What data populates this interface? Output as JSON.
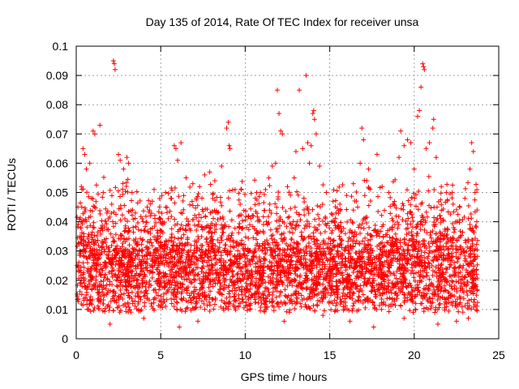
{
  "chart_data": {
    "type": "scatter",
    "title": "Day 135 of 2014, Rate Of TEC Index for receiver unsa",
    "xlabel": "GPS time / hours",
    "ylabel": "ROTI / TECUs",
    "xlim": [
      0,
      25
    ],
    "ylim": [
      0,
      0.1
    ],
    "xticks": [
      "0",
      "5",
      "10",
      "15",
      "20",
      "25"
    ],
    "yticks": [
      "0",
      "0.01",
      "0.02",
      "0.03",
      "0.04",
      "0.05",
      "0.06",
      "0.07",
      "0.08",
      "0.09",
      "0.1"
    ],
    "grid": true,
    "marker": "plus",
    "color": "#ff0000",
    "series": [
      {
        "points": [
          [
            0.1,
            0.045
          ],
          [
            0.2,
            0.03
          ],
          [
            0.3,
            0.052
          ],
          [
            0.4,
            0.065
          ],
          [
            0.5,
            0.063
          ],
          [
            0.6,
            0.058
          ],
          [
            0.8,
            0.06
          ],
          [
            0.9,
            0.048
          ],
          [
            1.0,
            0.071
          ],
          [
            1.1,
            0.07
          ],
          [
            1.4,
            0.073
          ],
          [
            1.6,
            0.05
          ],
          [
            1.9,
            0.041
          ],
          [
            2.1,
            0.046
          ],
          [
            2.2,
            0.095
          ],
          [
            2.25,
            0.094
          ],
          [
            2.3,
            0.092
          ],
          [
            2.5,
            0.063
          ],
          [
            2.6,
            0.061
          ],
          [
            2.8,
            0.058
          ],
          [
            3.0,
            0.062
          ],
          [
            3.1,
            0.06
          ],
          [
            3.3,
            0.05
          ],
          [
            3.5,
            0.043
          ],
          [
            3.9,
            0.041
          ],
          [
            4.2,
            0.045
          ],
          [
            4.5,
            0.047
          ],
          [
            4.9,
            0.041
          ],
          [
            5.3,
            0.045
          ],
          [
            5.6,
            0.048
          ],
          [
            5.8,
            0.066
          ],
          [
            5.9,
            0.065
          ],
          [
            6.0,
            0.061
          ],
          [
            6.2,
            0.067
          ],
          [
            6.5,
            0.055
          ],
          [
            6.9,
            0.053
          ],
          [
            7.3,
            0.052
          ],
          [
            7.6,
            0.056
          ],
          [
            7.9,
            0.057
          ],
          [
            8.2,
            0.054
          ],
          [
            8.6,
            0.059
          ],
          [
            8.9,
            0.072
          ],
          [
            9.0,
            0.074
          ],
          [
            9.05,
            0.066
          ],
          [
            9.1,
            0.065
          ],
          [
            9.4,
            0.051
          ],
          [
            9.7,
            0.046
          ],
          [
            10.2,
            0.042
          ],
          [
            10.6,
            0.048
          ],
          [
            10.9,
            0.05
          ],
          [
            11.2,
            0.051
          ],
          [
            11.4,
            0.055
          ],
          [
            11.6,
            0.059
          ],
          [
            11.8,
            0.06
          ],
          [
            11.9,
            0.085
          ],
          [
            12.0,
            0.077
          ],
          [
            12.1,
            0.071
          ],
          [
            12.2,
            0.07
          ],
          [
            12.5,
            0.052
          ],
          [
            12.9,
            0.055
          ],
          [
            13.0,
            0.064
          ],
          [
            13.2,
            0.085
          ],
          [
            13.4,
            0.065
          ],
          [
            13.6,
            0.09
          ],
          [
            13.7,
            0.067
          ],
          [
            13.8,
            0.06
          ],
          [
            13.9,
            0.066
          ],
          [
            14.0,
            0.077
          ],
          [
            14.05,
            0.078
          ],
          [
            14.1,
            0.075
          ],
          [
            14.2,
            0.07
          ],
          [
            14.4,
            0.059
          ],
          [
            14.8,
            0.05
          ],
          [
            15.2,
            0.047
          ],
          [
            15.6,
            0.046
          ],
          [
            16.0,
            0.049
          ],
          [
            16.4,
            0.053
          ],
          [
            16.8,
            0.06
          ],
          [
            16.9,
            0.072
          ],
          [
            17.0,
            0.068
          ],
          [
            17.3,
            0.058
          ],
          [
            17.8,
            0.063
          ],
          [
            18.1,
            0.052
          ],
          [
            18.5,
            0.05
          ],
          [
            18.8,
            0.046
          ],
          [
            19.1,
            0.062
          ],
          [
            19.2,
            0.071
          ],
          [
            19.4,
            0.066
          ],
          [
            19.6,
            0.068
          ],
          [
            19.8,
            0.067
          ],
          [
            20.0,
            0.058
          ],
          [
            20.2,
            0.076
          ],
          [
            20.3,
            0.078
          ],
          [
            20.4,
            0.086
          ],
          [
            20.5,
            0.094
          ],
          [
            20.55,
            0.093
          ],
          [
            20.6,
            0.092
          ],
          [
            20.7,
            0.065
          ],
          [
            20.9,
            0.067
          ],
          [
            21.1,
            0.072
          ],
          [
            21.15,
            0.075
          ],
          [
            21.3,
            0.062
          ],
          [
            21.6,
            0.052
          ],
          [
            21.9,
            0.05
          ],
          [
            22.3,
            0.046
          ],
          [
            22.7,
            0.045
          ],
          [
            23.0,
            0.048
          ],
          [
            23.3,
            0.058
          ],
          [
            23.4,
            0.067
          ],
          [
            23.5,
            0.064
          ],
          [
            23.6,
            0.05
          ],
          [
            23.7,
            0.04
          ],
          [
            2.0,
            0.005
          ],
          [
            4.0,
            0.007
          ],
          [
            6.1,
            0.004
          ],
          [
            7.2,
            0.006
          ],
          [
            12.3,
            0.006
          ],
          [
            14.6,
            0.008
          ],
          [
            16.2,
            0.006
          ],
          [
            17.6,
            0.004
          ],
          [
            19.4,
            0.007
          ],
          [
            21.4,
            0.005
          ],
          [
            22.5,
            0.006
          ],
          [
            23.2,
            0.007
          ]
        ]
      }
    ]
  }
}
